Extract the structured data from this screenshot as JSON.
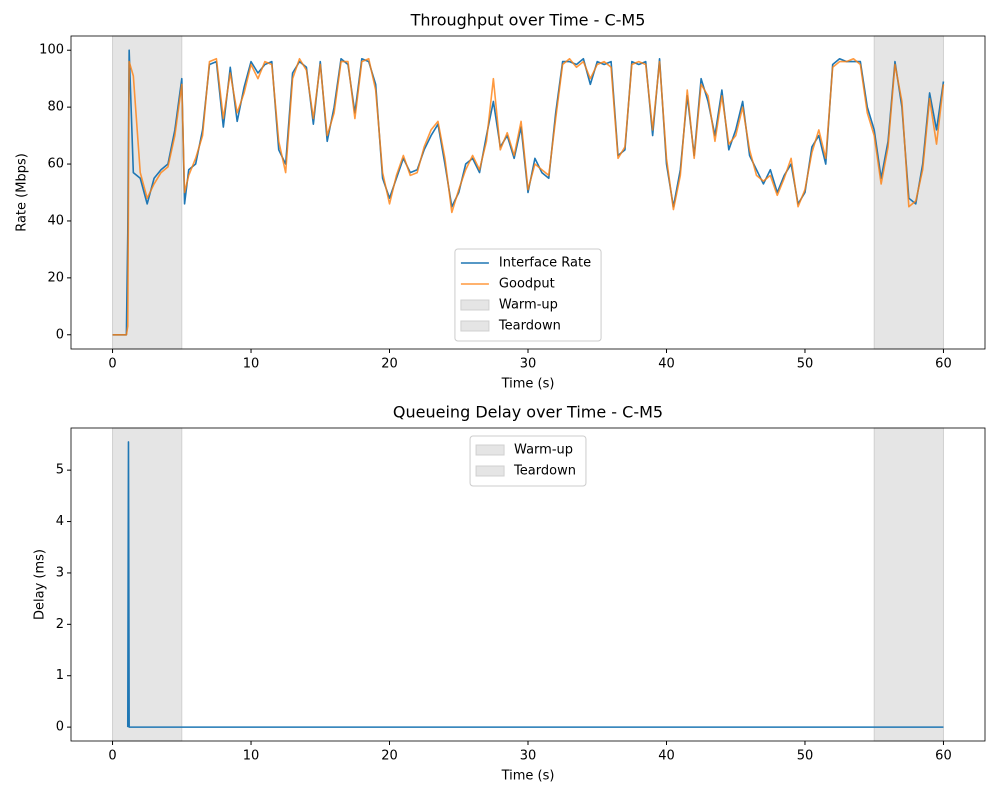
{
  "chart_data": [
    {
      "type": "line",
      "title": "Throughput over Time - C-M5",
      "xlabel": "Time (s)",
      "ylabel": "Rate (Mbps)",
      "x": [
        0,
        0.5,
        1.0,
        1.1,
        1.2,
        1.5,
        2,
        2.5,
        3,
        3.5,
        4,
        4.5,
        5,
        5.2,
        5.5,
        6,
        6.5,
        7,
        7.5,
        8,
        8.5,
        9,
        9.5,
        10,
        10.5,
        11,
        11.5,
        12,
        12.5,
        13,
        13.5,
        14,
        14.5,
        15,
        15.5,
        16,
        16.5,
        17,
        17.5,
        18,
        18.5,
        19,
        19.5,
        20,
        20.5,
        21,
        21.5,
        22,
        22.5,
        23,
        23.5,
        24,
        24.5,
        25,
        25.5,
        26,
        26.5,
        27,
        27.5,
        28,
        28.5,
        29,
        29.5,
        30,
        30.5,
        31,
        31.5,
        32,
        32.5,
        33,
        33.5,
        34,
        34.5,
        35,
        35.5,
        36,
        36.5,
        37,
        37.5,
        38,
        38.5,
        39,
        39.5,
        40,
        40.5,
        41,
        41.5,
        42,
        42.5,
        43,
        43.5,
        44,
        44.5,
        45,
        45.5,
        46,
        46.5,
        47,
        47.5,
        48,
        48.5,
        49,
        49.5,
        50,
        50.5,
        51,
        51.5,
        52,
        52.5,
        53,
        53.5,
        54,
        54.5,
        55,
        55.5,
        56,
        56.5,
        57,
        57.5,
        58,
        58.5,
        59,
        59.5,
        60
      ],
      "series": [
        {
          "name": "Interface Rate",
          "color": "#1f77b4",
          "values": [
            0,
            0,
            0,
            36,
            100,
            57,
            55,
            46,
            55,
            58,
            60,
            72,
            90,
            46,
            58,
            60,
            72,
            95,
            96,
            73,
            94,
            75,
            87,
            96,
            92,
            95,
            96,
            65,
            60,
            92,
            96,
            94,
            74,
            96,
            68,
            80,
            97,
            95,
            78,
            97,
            96,
            88,
            55,
            48,
            55,
            62,
            57,
            58,
            65,
            70,
            74,
            60,
            45,
            50,
            60,
            62,
            57,
            70,
            82,
            66,
            70,
            62,
            73,
            50,
            62,
            57,
            55,
            78,
            96,
            96,
            95,
            97,
            88,
            96,
            95,
            96,
            63,
            65,
            96,
            95,
            96,
            70,
            97,
            60,
            45,
            58,
            84,
            63,
            90,
            82,
            70,
            86,
            65,
            72,
            82,
            63,
            58,
            53,
            58,
            50,
            56,
            60,
            46,
            50,
            66,
            70,
            60,
            95,
            97,
            96,
            96,
            96,
            80,
            72,
            55,
            68,
            96,
            80,
            48,
            46,
            60,
            85,
            72,
            89
          ]
        },
        {
          "name": "Goodput",
          "color": "#ff7f0e",
          "values": [
            0,
            0,
            0,
            3,
            96,
            91,
            57,
            48,
            53,
            57,
            59,
            70,
            88,
            50,
            56,
            62,
            70,
            96,
            97,
            76,
            92,
            78,
            85,
            95,
            90,
            96,
            95,
            68,
            57,
            90,
            97,
            93,
            76,
            95,
            70,
            78,
            96,
            96,
            76,
            96,
            97,
            86,
            57,
            46,
            56,
            63,
            56,
            57,
            66,
            72,
            75,
            62,
            43,
            51,
            58,
            63,
            58,
            68,
            90,
            65,
            71,
            63,
            75,
            51,
            60,
            58,
            56,
            76,
            95,
            97,
            94,
            96,
            90,
            95,
            96,
            94,
            62,
            66,
            95,
            96,
            95,
            72,
            96,
            62,
            44,
            56,
            86,
            62,
            88,
            84,
            68,
            84,
            67,
            70,
            80,
            65,
            56,
            54,
            56,
            49,
            55,
            62,
            45,
            51,
            64,
            72,
            62,
            94,
            96,
            96,
            97,
            95,
            78,
            70,
            53,
            66,
            95,
            82,
            45,
            47,
            58,
            83,
            67,
            88
          ]
        }
      ],
      "spans": [
        {
          "name": "Warm-up",
          "start": 0,
          "end": 5,
          "color": "#e5e5e5"
        },
        {
          "name": "Teardown",
          "start": 55,
          "end": 60,
          "color": "#e5e5e5"
        }
      ],
      "xlim": [
        -3,
        63
      ],
      "ylim": [
        -5,
        105
      ],
      "xticks": [
        0,
        10,
        20,
        30,
        40,
        50,
        60
      ],
      "yticks": [
        0,
        20,
        40,
        60,
        80,
        100
      ],
      "legend": "lower center"
    },
    {
      "type": "line",
      "title": "Queueing Delay over Time - C-M5",
      "xlabel": "Time (s)",
      "ylabel": "Delay (ms)",
      "x": [
        1.1,
        1.15,
        1.2,
        60
      ],
      "series": [
        {
          "color": "#1f77b4",
          "values": [
            0,
            5.55,
            0,
            0
          ]
        }
      ],
      "spans": [
        {
          "name": "Warm-up",
          "start": 0,
          "end": 5,
          "color": "#e5e5e5"
        },
        {
          "name": "Teardown",
          "start": 55,
          "end": 60,
          "color": "#e5e5e5"
        }
      ],
      "xlim": [
        -3,
        63
      ],
      "ylim": [
        -0.27,
        5.82
      ],
      "xticks": [
        0,
        10,
        20,
        30,
        40,
        50,
        60
      ],
      "yticks": [
        0,
        1,
        2,
        3,
        4,
        5
      ],
      "legend": "upper center"
    }
  ]
}
